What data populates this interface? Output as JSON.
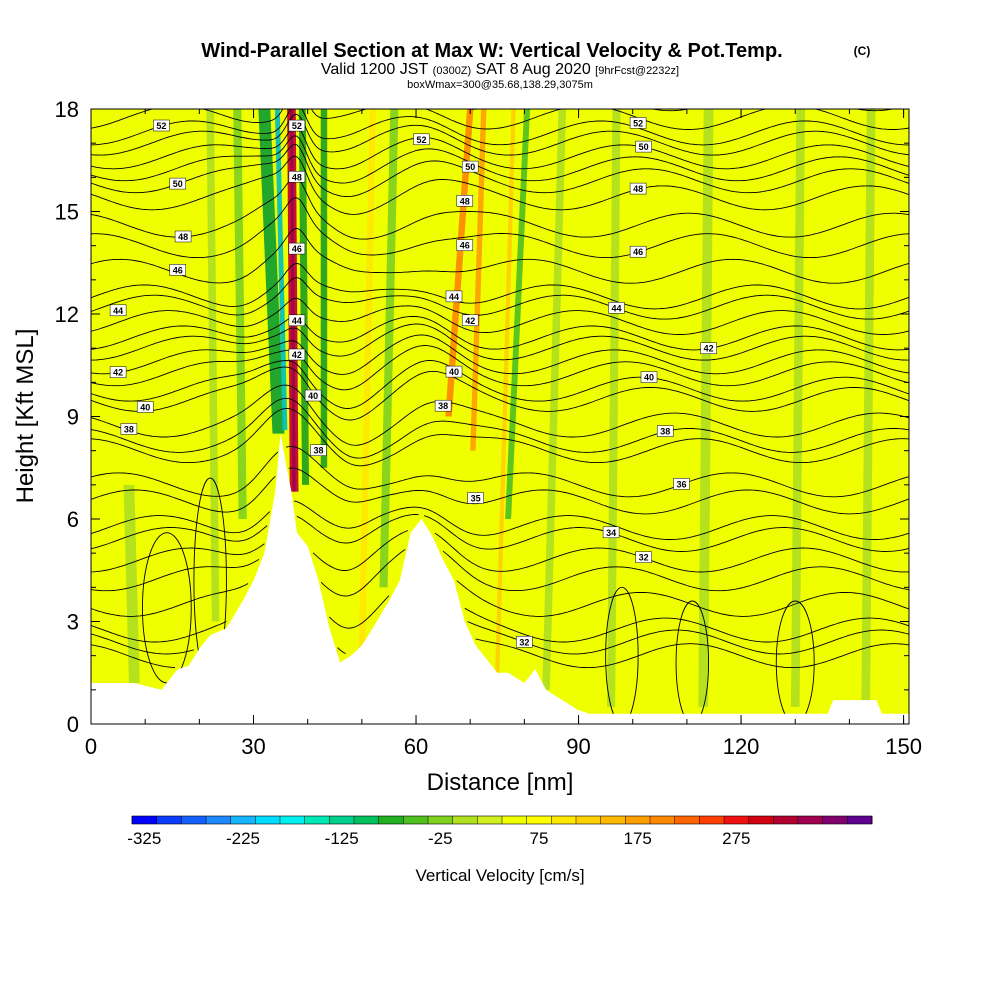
{
  "chart_data": {
    "type": "heatmap",
    "title": "Wind-Parallel Section at Max W: Vertical Velocity & Pot.Temp.",
    "title_mark": "(C)",
    "subtitle_main": "Valid 1200 JST",
    "subtitle_zulu": "(0300Z)",
    "subtitle_date": "SAT 8 Aug 2020",
    "subtitle_fcst": "[9hrFcst@2232z]",
    "subtitle2": "boxWmax=300@35.68,138.29,3075m",
    "xlabel": "Distance [nm]",
    "ylabel": "Height [Kft MSL]",
    "xlim": [
      0,
      151
    ],
    "ylim": [
      0,
      18
    ],
    "x_ticks": [
      "0",
      "30",
      "60",
      "90",
      "120",
      "150"
    ],
    "y_ticks": [
      "0",
      "3",
      "6",
      "9",
      "12",
      "15",
      "18"
    ],
    "colorbar": {
      "label": "Vertical Velocity [cm/s]",
      "tick_labels": [
        "-325",
        "-225",
        "-125",
        "-25",
        "75",
        "175",
        "275"
      ],
      "colors": [
        "#0000ff",
        "#0a3cff",
        "#1460ff",
        "#1e88ff",
        "#14b4ff",
        "#00dcff",
        "#00f0f0",
        "#00e8b4",
        "#00d08c",
        "#00c060",
        "#20b020",
        "#50c020",
        "#80d020",
        "#b0e020",
        "#d0f020",
        "#f0ff00",
        "#ffff00",
        "#ffe800",
        "#ffd000",
        "#ffb800",
        "#ffa000",
        "#ff8800",
        "#ff6400",
        "#ff4000",
        "#f01010",
        "#d00010",
        "#b00030",
        "#a00050",
        "#800070",
        "#600090"
      ]
    },
    "terrain_profile": [
      [
        0,
        1.2
      ],
      [
        3,
        1.2
      ],
      [
        8,
        1.2
      ],
      [
        13,
        1.0
      ],
      [
        16,
        1.6
      ],
      [
        18,
        1.7
      ],
      [
        20,
        2.2
      ],
      [
        22,
        2.6
      ],
      [
        25,
        2.8
      ],
      [
        28,
        3.6
      ],
      [
        30,
        4.2
      ],
      [
        32,
        5.0
      ],
      [
        34,
        6.8
      ],
      [
        35,
        8.5
      ],
      [
        36,
        7.6
      ],
      [
        37,
        6.8
      ],
      [
        38,
        5.6
      ],
      [
        40,
        5.2
      ],
      [
        42,
        4.2
      ],
      [
        44,
        2.8
      ],
      [
        46,
        1.8
      ],
      [
        48,
        2.0
      ],
      [
        50,
        2.3
      ],
      [
        52,
        2.8
      ],
      [
        55,
        3.6
      ],
      [
        57,
        4.2
      ],
      [
        59,
        5.6
      ],
      [
        61,
        6.0
      ],
      [
        63,
        5.5
      ],
      [
        65,
        4.8
      ],
      [
        67,
        4.2
      ],
      [
        69,
        3.0
      ],
      [
        71,
        2.3
      ],
      [
        73,
        1.9
      ],
      [
        75,
        1.5
      ],
      [
        77,
        1.5
      ],
      [
        80,
        1.2
      ],
      [
        82,
        1.6
      ],
      [
        84,
        1.0
      ],
      [
        86,
        0.8
      ],
      [
        88,
        0.6
      ],
      [
        90,
        0.4
      ],
      [
        92,
        0.3
      ],
      [
        100,
        0.3
      ],
      [
        110,
        0.3
      ],
      [
        120,
        0.3
      ],
      [
        130,
        0.3
      ],
      [
        136,
        0.3
      ],
      [
        137,
        0.7
      ],
      [
        145,
        0.7
      ],
      [
        146,
        0.3
      ],
      [
        151,
        0.3
      ]
    ],
    "theta_contours": [
      {
        "label": "32",
        "base": 2.4,
        "label_x": 80
      },
      {
        "label": "32",
        "base": 4.8,
        "label_x": 102
      },
      {
        "label": "34",
        "base": 5.4,
        "label_x": 96
      },
      {
        "label": "36",
        "base": 7.0,
        "label_x": 109
      },
      {
        "label": "38",
        "base": 8.3,
        "label_x": 106
      },
      {
        "label": "38",
        "base": 8.8,
        "label_x": 7
      },
      {
        "label": "40",
        "base": 9.6,
        "label_x": 10
      },
      {
        "label": "40",
        "base": 9.8,
        "label_x": 103
      },
      {
        "label": "42",
        "base": 10.6,
        "label_x": 5
      },
      {
        "label": "42",
        "base": 11.3,
        "label_x": 114
      },
      {
        "label": "44",
        "base": 12.0,
        "label_x": 5
      },
      {
        "label": "44",
        "base": 12.2,
        "label_x": 97
      },
      {
        "label": "46",
        "base": 13.4,
        "label_x": 16
      },
      {
        "label": "46",
        "base": 14.0,
        "label_x": 101
      },
      {
        "label": "48",
        "base": 14.6,
        "label_x": 17
      },
      {
        "label": "48",
        "base": 15.4,
        "label_x": 101
      },
      {
        "label": "50",
        "base": 15.9,
        "label_x": 16
      },
      {
        "label": "50",
        "base": 16.6,
        "label_x": 102
      },
      {
        "label": "52",
        "base": 17.3,
        "label_x": 13
      },
      {
        "label": "52",
        "base": 17.5,
        "label_x": 101
      }
    ],
    "upper_contours": [
      {
        "base": 18.3
      },
      {
        "base": 18.8
      }
    ],
    "wave_contour_labels": [
      {
        "label": "52",
        "x": 38,
        "y": 17.5
      },
      {
        "label": "48",
        "x": 38,
        "y": 16.0
      },
      {
        "label": "46",
        "x": 38,
        "y": 13.9
      },
      {
        "label": "44",
        "x": 38,
        "y": 11.8
      },
      {
        "label": "42",
        "x": 38,
        "y": 10.8
      },
      {
        "label": "40",
        "x": 41,
        "y": 9.6
      },
      {
        "label": "38",
        "x": 42,
        "y": 8.0
      },
      {
        "label": "52",
        "x": 61,
        "y": 17.1
      },
      {
        "label": "50",
        "x": 70,
        "y": 16.3
      },
      {
        "label": "48",
        "x": 69,
        "y": 15.3
      },
      {
        "label": "46",
        "x": 69,
        "y": 14.0
      },
      {
        "label": "44",
        "x": 67,
        "y": 12.5
      },
      {
        "label": "42",
        "x": 70,
        "y": 11.8
      },
      {
        "label": "40",
        "x": 67,
        "y": 10.3
      },
      {
        "label": "38",
        "x": 65,
        "y": 9.3
      },
      {
        "label": "35",
        "x": 71,
        "y": 6.6
      }
    ],
    "updraft_bands": [
      {
        "x0": 37.5,
        "x1": 37.0,
        "y0": 6.8,
        "y1": 18,
        "w": 1.6,
        "color": "#c00030"
      },
      {
        "x0": 37.5,
        "x1": 37.0,
        "y0": 6.8,
        "y1": 18,
        "w": 0.6,
        "color": "#a00050"
      },
      {
        "x0": 34.6,
        "x1": 32.0,
        "y0": 8.5,
        "y1": 18,
        "w": 2.2,
        "color": "#10a030"
      },
      {
        "x0": 35.8,
        "x1": 34.4,
        "y0": 8.6,
        "y1": 18,
        "w": 0.9,
        "color": "#00c0c0"
      },
      {
        "x0": 39.6,
        "x1": 39.0,
        "y0": 7.0,
        "y1": 18,
        "w": 1.3,
        "color": "#20a020"
      },
      {
        "x0": 43.0,
        "x1": 43.0,
        "y0": 7.5,
        "y1": 18,
        "w": 1.2,
        "color": "#20a020"
      },
      {
        "x0": 66.0,
        "x1": 70.0,
        "y0": 9.0,
        "y1": 18,
        "w": 1.2,
        "color": "#ff8800"
      },
      {
        "x0": 70.5,
        "x1": 72.5,
        "y0": 8.0,
        "y1": 18,
        "w": 1.0,
        "color": "#ffa000"
      },
      {
        "x0": 77.0,
        "x1": 80.5,
        "y0": 6.0,
        "y1": 18,
        "w": 1.1,
        "color": "#50c020"
      },
      {
        "x0": 28.0,
        "x1": 27.0,
        "y0": 6.0,
        "y1": 18,
        "w": 1.5,
        "color": "#80d020"
      },
      {
        "x0": 23.0,
        "x1": 22.0,
        "y0": 3.0,
        "y1": 18,
        "w": 1.4,
        "color": "#b0e020"
      },
      {
        "x0": 54.0,
        "x1": 56.0,
        "y0": 4.0,
        "y1": 18,
        "w": 1.5,
        "color": "#80d020"
      },
      {
        "x0": 84.0,
        "x1": 87.0,
        "y0": 1.0,
        "y1": 18,
        "w": 1.4,
        "color": "#b0e020"
      },
      {
        "x0": 96.0,
        "x1": 97.0,
        "y0": 0.5,
        "y1": 18,
        "w": 1.5,
        "color": "#b0e020"
      },
      {
        "x0": 113.0,
        "x1": 114.0,
        "y0": 0.5,
        "y1": 18,
        "w": 1.8,
        "color": "#b0e020"
      },
      {
        "x0": 130.0,
        "x1": 131.0,
        "y0": 0.5,
        "y1": 18,
        "w": 1.6,
        "color": "#b0e020"
      },
      {
        "x0": 143.0,
        "x1": 144.0,
        "y0": 0.5,
        "y1": 18,
        "w": 1.6,
        "color": "#b0e020"
      },
      {
        "x0": 8.0,
        "x1": 7.0,
        "y0": 1.2,
        "y1": 7.0,
        "w": 2.0,
        "color": "#b0e020"
      },
      {
        "x0": 50.0,
        "x1": 52.0,
        "y0": 2.0,
        "y1": 18,
        "w": 1.2,
        "color": "#ffe800"
      },
      {
        "x0": 75.0,
        "x1": 78.0,
        "y0": 1.5,
        "y1": 18,
        "w": 0.8,
        "color": "#ffd000"
      }
    ]
  }
}
